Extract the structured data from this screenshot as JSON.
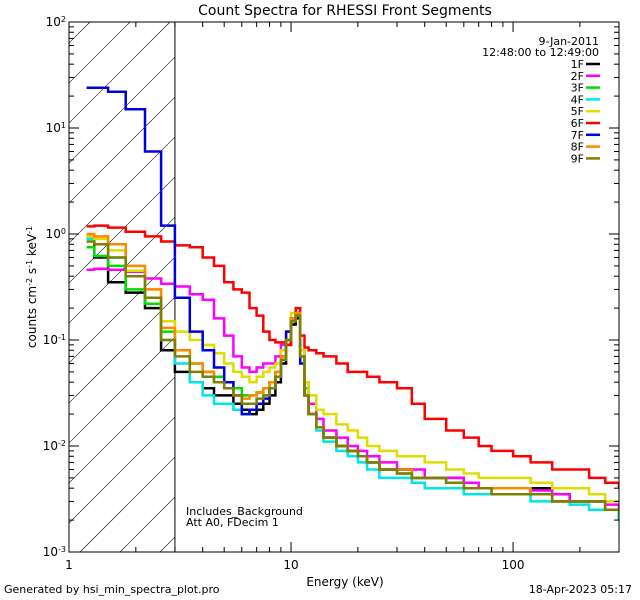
{
  "chart_data": {
    "type": "line",
    "title": "Count Spectra for RHESSI Front Segments",
    "xlabel": "Energy (keV)",
    "ylabel": "counts cm^-2 s^-1 keV^-1",
    "xscale": "log",
    "yscale": "log",
    "xlim": [
      1,
      300
    ],
    "ylim": [
      0.001,
      100
    ],
    "x_ticks": [
      {
        "value": 1,
        "label": "1"
      },
      {
        "value": 10,
        "label": "10"
      },
      {
        "value": 100,
        "label": "100"
      }
    ],
    "y_ticks": [
      {
        "value": 0.001,
        "base": "10",
        "exp": "-3"
      },
      {
        "value": 0.01,
        "base": "10",
        "exp": "-2"
      },
      {
        "value": 0.1,
        "base": "10",
        "exp": "-1"
      },
      {
        "value": 1,
        "base": "10",
        "exp": "0"
      },
      {
        "value": 10,
        "base": "10",
        "exp": "1"
      },
      {
        "value": 100,
        "base": "10",
        "exp": "2"
      }
    ],
    "shaded_region": {
      "x_from": 1,
      "x_to": 3,
      "pattern": "diagonal hatch"
    },
    "date": "9-Jan-2011",
    "time_range": "12:48:00 to 12:49:00",
    "annotations": [
      "Includes_Background",
      "Att A0, FDecim 1"
    ],
    "series": [
      {
        "name": "1F",
        "color": "#000000",
        "x": [
          1.2,
          1.3,
          1.5,
          1.8,
          2.2,
          2.6,
          3.0,
          3.5,
          4.0,
          4.5,
          5.0,
          5.5,
          6.0,
          6.5,
          7.0,
          7.5,
          8.0,
          8.5,
          9.0,
          9.5,
          10.0,
          10.5,
          11.0,
          11.5,
          12.0,
          13.0,
          14.0,
          16.0,
          18.0,
          20.0,
          22.0,
          25.0,
          30.0,
          35.0,
          40.0,
          50.0,
          60.0,
          70.0,
          80.0,
          100.0,
          120.0,
          150.0,
          180.0,
          220.0,
          260.0,
          300.0
        ],
        "y": [
          0.95,
          0.6,
          0.35,
          0.28,
          0.2,
          0.08,
          0.05,
          0.04,
          0.035,
          0.03,
          0.03,
          0.025,
          0.022,
          0.02,
          0.022,
          0.025,
          0.03,
          0.04,
          0.06,
          0.09,
          0.14,
          0.16,
          0.07,
          0.03,
          0.02,
          0.015,
          0.012,
          0.01,
          0.009,
          0.008,
          0.007,
          0.006,
          0.006,
          0.005,
          0.005,
          0.005,
          0.004,
          0.004,
          0.004,
          0.004,
          0.004,
          0.0035,
          0.003,
          0.003,
          0.0025,
          0.002
        ]
      },
      {
        "name": "2F",
        "color": "#ff00ff",
        "x": [
          1.2,
          1.3,
          1.5,
          1.8,
          2.2,
          2.6,
          3.0,
          3.5,
          4.0,
          4.5,
          5.0,
          5.5,
          6.0,
          6.5,
          7.0,
          7.5,
          8.0,
          8.5,
          9.0,
          9.5,
          10.0,
          10.5,
          11.0,
          11.5,
          12.0,
          13.0,
          14.0,
          16.0,
          18.0,
          20.0,
          22.0,
          25.0,
          30.0,
          35.0,
          40.0,
          50.0,
          60.0,
          70.0,
          80.0,
          100.0,
          120.0,
          150.0,
          180.0,
          220.0,
          260.0,
          300.0
        ],
        "y": [
          0.46,
          0.47,
          0.46,
          0.44,
          0.38,
          0.34,
          0.32,
          0.27,
          0.24,
          0.16,
          0.11,
          0.07,
          0.055,
          0.05,
          0.055,
          0.06,
          0.06,
          0.07,
          0.09,
          0.12,
          0.15,
          0.17,
          0.08,
          0.04,
          0.025,
          0.018,
          0.014,
          0.012,
          0.01,
          0.009,
          0.008,
          0.007,
          0.006,
          0.006,
          0.005,
          0.005,
          0.0045,
          0.004,
          0.004,
          0.004,
          0.0038,
          0.0035,
          0.003,
          0.003,
          0.0028,
          0.0025
        ]
      },
      {
        "name": "3F",
        "color": "#00dd00",
        "x": [
          1.2,
          1.3,
          1.5,
          1.8,
          2.2,
          2.6,
          3.0,
          3.5,
          4.0,
          4.5,
          5.0,
          5.5,
          6.0,
          6.5,
          7.0,
          7.5,
          8.0,
          8.5,
          9.0,
          9.5,
          10.0,
          10.5,
          11.0,
          11.5,
          12.0,
          13.0,
          14.0,
          16.0,
          18.0,
          20.0,
          22.0,
          25.0,
          30.0,
          35.0,
          40.0,
          50.0,
          60.0,
          70.0,
          80.0,
          100.0,
          120.0,
          150.0,
          180.0,
          220.0,
          260.0,
          300.0
        ],
        "y": [
          0.75,
          0.62,
          0.5,
          0.3,
          0.22,
          0.12,
          0.08,
          0.06,
          0.05,
          0.045,
          0.04,
          0.035,
          0.03,
          0.03,
          0.032,
          0.035,
          0.04,
          0.05,
          0.07,
          0.1,
          0.15,
          0.17,
          0.07,
          0.035,
          0.02,
          0.015,
          0.012,
          0.01,
          0.009,
          0.008,
          0.007,
          0.006,
          0.0055,
          0.005,
          0.005,
          0.0045,
          0.004,
          0.004,
          0.0035,
          0.0035,
          0.0035,
          0.003,
          0.003,
          0.003,
          0.0025,
          0.002
        ]
      },
      {
        "name": "4F",
        "color": "#00e5e5",
        "x": [
          1.2,
          1.3,
          1.5,
          1.8,
          2.2,
          2.6,
          3.0,
          3.5,
          4.0,
          4.5,
          5.0,
          5.5,
          6.0,
          6.5,
          7.0,
          7.5,
          8.0,
          8.5,
          9.0,
          9.5,
          10.0,
          10.5,
          11.0,
          11.5,
          12.0,
          13.0,
          14.0,
          16.0,
          18.0,
          20.0,
          22.0,
          25.0,
          30.0,
          35.0,
          40.0,
          50.0,
          60.0,
          70.0,
          80.0,
          100.0,
          120.0,
          150.0,
          180.0,
          220.0,
          260.0,
          300.0
        ],
        "y": [
          0.9,
          0.8,
          0.6,
          0.4,
          0.25,
          0.1,
          0.06,
          0.04,
          0.03,
          0.025,
          0.025,
          0.022,
          0.02,
          0.022,
          0.025,
          0.03,
          0.035,
          0.045,
          0.065,
          0.1,
          0.15,
          0.18,
          0.07,
          0.03,
          0.02,
          0.014,
          0.011,
          0.009,
          0.008,
          0.007,
          0.006,
          0.005,
          0.005,
          0.0045,
          0.004,
          0.004,
          0.0035,
          0.0035,
          0.0035,
          0.0035,
          0.003,
          0.003,
          0.0028,
          0.0025,
          0.0025,
          0.002
        ]
      },
      {
        "name": "5F",
        "color": "#dddd00",
        "x": [
          1.2,
          1.3,
          1.5,
          1.8,
          2.2,
          2.6,
          3.0,
          3.5,
          4.0,
          4.5,
          5.0,
          5.5,
          6.0,
          6.5,
          7.0,
          7.5,
          8.0,
          8.5,
          9.0,
          9.5,
          10.0,
          10.5,
          11.0,
          11.5,
          12.0,
          13.0,
          14.0,
          16.0,
          18.0,
          20.0,
          22.0,
          25.0,
          30.0,
          35.0,
          40.0,
          50.0,
          60.0,
          70.0,
          80.0,
          100.0,
          120.0,
          150.0,
          180.0,
          220.0,
          260.0,
          300.0
        ],
        "y": [
          0.95,
          0.9,
          0.7,
          0.45,
          0.3,
          0.15,
          0.12,
          0.1,
          0.09,
          0.075,
          0.06,
          0.05,
          0.045,
          0.04,
          0.045,
          0.05,
          0.055,
          0.06,
          0.08,
          0.12,
          0.18,
          0.2,
          0.08,
          0.04,
          0.03,
          0.022,
          0.02,
          0.016,
          0.014,
          0.012,
          0.01,
          0.009,
          0.008,
          0.008,
          0.007,
          0.006,
          0.0055,
          0.005,
          0.005,
          0.005,
          0.0045,
          0.004,
          0.004,
          0.0035,
          0.003,
          0.003
        ]
      },
      {
        "name": "6F",
        "color": "#ff0000",
        "x": [
          1.2,
          1.3,
          1.5,
          1.8,
          2.2,
          2.6,
          3.0,
          3.5,
          4.0,
          4.5,
          5.0,
          5.5,
          6.0,
          6.5,
          7.0,
          7.5,
          8.0,
          8.5,
          9.0,
          9.5,
          10.0,
          10.5,
          11.0,
          11.5,
          12.0,
          13.0,
          14.0,
          16.0,
          18.0,
          20.0,
          22.0,
          25.0,
          30.0,
          35.0,
          40.0,
          50.0,
          60.0,
          70.0,
          80.0,
          100.0,
          120.0,
          150.0,
          180.0,
          220.0,
          260.0,
          300.0
        ],
        "y": [
          1.18,
          1.2,
          1.15,
          1.05,
          0.95,
          0.85,
          0.78,
          0.75,
          0.6,
          0.5,
          0.35,
          0.3,
          0.28,
          0.2,
          0.17,
          0.12,
          0.1,
          0.095,
          0.095,
          0.09,
          0.16,
          0.2,
          0.11,
          0.085,
          0.08,
          0.075,
          0.07,
          0.06,
          0.05,
          0.05,
          0.045,
          0.04,
          0.035,
          0.025,
          0.018,
          0.014,
          0.012,
          0.01,
          0.009,
          0.008,
          0.007,
          0.006,
          0.006,
          0.005,
          0.0045,
          0.004
        ]
      },
      {
        "name": "7F",
        "color": "#0000dd",
        "x": [
          1.2,
          1.3,
          1.5,
          1.8,
          2.2,
          2.6,
          3.0,
          3.5,
          4.0,
          4.5,
          5.0,
          5.5,
          6.0,
          6.5,
          7.0,
          7.5,
          8.0,
          8.5,
          9.0,
          9.5,
          10.0,
          10.5,
          11.0,
          11.5,
          12.0,
          13.0,
          14.0,
          16.0,
          18.0,
          20.0,
          22.0,
          25.0,
          30.0,
          35.0,
          40.0,
          50.0,
          60.0,
          70.0,
          80.0,
          100.0,
          120.0,
          150.0,
          180.0,
          220.0,
          260.0,
          300.0
        ],
        "y": [
          24,
          24,
          22,
          15,
          6,
          1.2,
          0.25,
          0.12,
          0.08,
          0.055,
          0.04,
          0.03,
          0.02,
          0.022,
          0.025,
          0.028,
          0.035,
          0.045,
          0.07,
          0.12,
          0.16,
          0.18,
          0.06,
          0.03,
          0.02,
          0.015,
          0.012,
          0.01,
          0.009,
          0.008,
          0.007,
          0.006,
          0.006,
          0.005,
          0.005,
          0.0045,
          0.004,
          0.004,
          0.004,
          0.004,
          0.0035,
          0.003,
          0.003,
          0.003,
          0.0025,
          0.0025
        ]
      },
      {
        "name": "8F",
        "color": "#ff8800",
        "x": [
          1.2,
          1.3,
          1.5,
          1.8,
          2.2,
          2.6,
          3.0,
          3.5,
          4.0,
          4.5,
          5.0,
          5.5,
          6.0,
          6.5,
          7.0,
          7.5,
          8.0,
          8.5,
          9.0,
          9.5,
          10.0,
          10.5,
          11.0,
          11.5,
          12.0,
          13.0,
          14.0,
          16.0,
          18.0,
          20.0,
          22.0,
          25.0,
          30.0,
          35.0,
          40.0,
          50.0,
          60.0,
          70.0,
          80.0,
          100.0,
          120.0,
          150.0,
          180.0,
          220.0,
          260.0,
          300.0
        ],
        "y": [
          1.0,
          0.95,
          0.8,
          0.5,
          0.3,
          0.13,
          0.08,
          0.06,
          0.05,
          0.04,
          0.035,
          0.03,
          0.028,
          0.03,
          0.032,
          0.035,
          0.04,
          0.05,
          0.07,
          0.1,
          0.16,
          0.18,
          0.07,
          0.03,
          0.02,
          0.015,
          0.012,
          0.01,
          0.009,
          0.008,
          0.007,
          0.006,
          0.006,
          0.005,
          0.005,
          0.0045,
          0.004,
          0.004,
          0.004,
          0.004,
          0.0035,
          0.003,
          0.003,
          0.003,
          0.0025,
          0.0025
        ]
      },
      {
        "name": "9F",
        "color": "#808000",
        "x": [
          1.2,
          1.3,
          1.5,
          1.8,
          2.2,
          2.6,
          3.0,
          3.5,
          4.0,
          4.5,
          5.0,
          5.5,
          6.0,
          6.5,
          7.0,
          7.5,
          8.0,
          8.5,
          9.0,
          9.5,
          10.0,
          10.5,
          11.0,
          11.5,
          12.0,
          13.0,
          14.0,
          16.0,
          18.0,
          20.0,
          22.0,
          25.0,
          30.0,
          35.0,
          40.0,
          50.0,
          60.0,
          70.0,
          80.0,
          100.0,
          120.0,
          150.0,
          180.0,
          220.0,
          260.0,
          300.0
        ],
        "y": [
          0.85,
          0.8,
          0.6,
          0.4,
          0.25,
          0.1,
          0.07,
          0.05,
          0.045,
          0.04,
          0.035,
          0.03,
          0.025,
          0.025,
          0.028,
          0.03,
          0.035,
          0.045,
          0.065,
          0.1,
          0.15,
          0.17,
          0.07,
          0.03,
          0.02,
          0.015,
          0.012,
          0.01,
          0.009,
          0.008,
          0.007,
          0.006,
          0.0055,
          0.005,
          0.005,
          0.0045,
          0.004,
          0.004,
          0.0035,
          0.0035,
          0.0035,
          0.003,
          0.003,
          0.003,
          0.0025,
          0.0025
        ]
      }
    ]
  },
  "footer": {
    "generated_by": "Generated by hsi_min_spectra_plot.pro",
    "timestamp": "18-Apr-2023 05:17"
  }
}
